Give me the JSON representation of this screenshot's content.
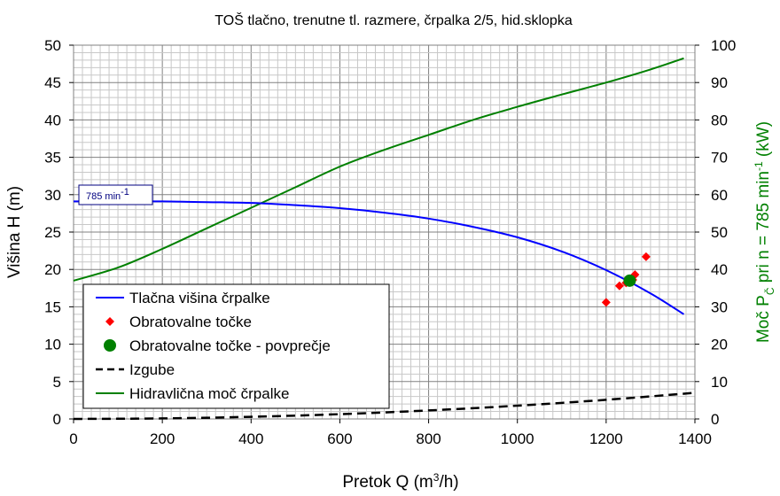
{
  "chart_data": {
    "type": "line",
    "title": "TOŠ tlačno, trenutne tl. razmere, črpalka 2/5, hid.sklopka",
    "xlabel": {
      "prefix": "Pretok Q (m",
      "sup": "3",
      "suffix": "/h)"
    },
    "ylabel": "Višina H (m)",
    "y2label": {
      "p1": "Moč P",
      "sub": "Č",
      "p2": " pri n = 785 min",
      "sup": "-1",
      "p3": " (kW)"
    },
    "xlim": [
      0,
      1400
    ],
    "ylim": [
      0,
      50
    ],
    "y2lim": [
      0,
      100
    ],
    "xticks": [
      0,
      200,
      400,
      600,
      800,
      1000,
      1200,
      1400
    ],
    "yticks": [
      0,
      5,
      10,
      15,
      20,
      25,
      30,
      35,
      40,
      45,
      50
    ],
    "y2ticks": [
      0,
      10,
      20,
      30,
      40,
      50,
      60,
      70,
      80,
      90,
      100
    ],
    "grid": true,
    "legend_position": "bottom-left",
    "annotation": {
      "text": "785 min",
      "sup": "-1"
    },
    "series": [
      {
        "name": "Tlačna višina črpalke",
        "kind": "line",
        "axis": "left",
        "color": "#0000ff",
        "x": [
          0,
          100,
          200,
          300,
          400,
          500,
          600,
          700,
          800,
          900,
          1000,
          1100,
          1200,
          1300,
          1375
        ],
        "y": [
          29.1,
          29.1,
          29.1,
          29.0,
          28.9,
          28.6,
          28.2,
          27.6,
          26.8,
          25.7,
          24.3,
          22.4,
          19.9,
          16.8,
          14.0
        ]
      },
      {
        "name": "Obratovalne točke",
        "kind": "scatter",
        "marker": "diamond",
        "axis": "left",
        "color": "#ff0000",
        "x": [
          1200,
          1230,
          1245,
          1260,
          1265,
          1290
        ],
        "y": [
          15.6,
          17.8,
          18.2,
          18.6,
          19.3,
          21.7
        ]
      },
      {
        "name": "Obratovalne točke - povprečje",
        "kind": "scatter",
        "marker": "circle",
        "axis": "left",
        "color": "#008000",
        "x": [
          1253
        ],
        "y": [
          18.5
        ]
      },
      {
        "name": "Izgube",
        "kind": "line",
        "dash": true,
        "axis": "left",
        "color": "#000000",
        "x": [
          0,
          200,
          400,
          600,
          800,
          1000,
          1200,
          1400
        ],
        "y": [
          0.0,
          0.07,
          0.28,
          0.64,
          1.14,
          1.78,
          2.56,
          3.5
        ]
      },
      {
        "name": "Hidravlična moč črpalke",
        "kind": "line",
        "axis": "right",
        "color": "#008000",
        "x": [
          0,
          100,
          200,
          300,
          400,
          500,
          600,
          700,
          800,
          900,
          1000,
          1100,
          1200,
          1300,
          1375
        ],
        "y": [
          37.0,
          40.5,
          45.5,
          51.0,
          56.5,
          62.0,
          67.5,
          72.0,
          76.0,
          80.0,
          83.5,
          86.8,
          90.0,
          93.5,
          96.5
        ]
      }
    ]
  }
}
